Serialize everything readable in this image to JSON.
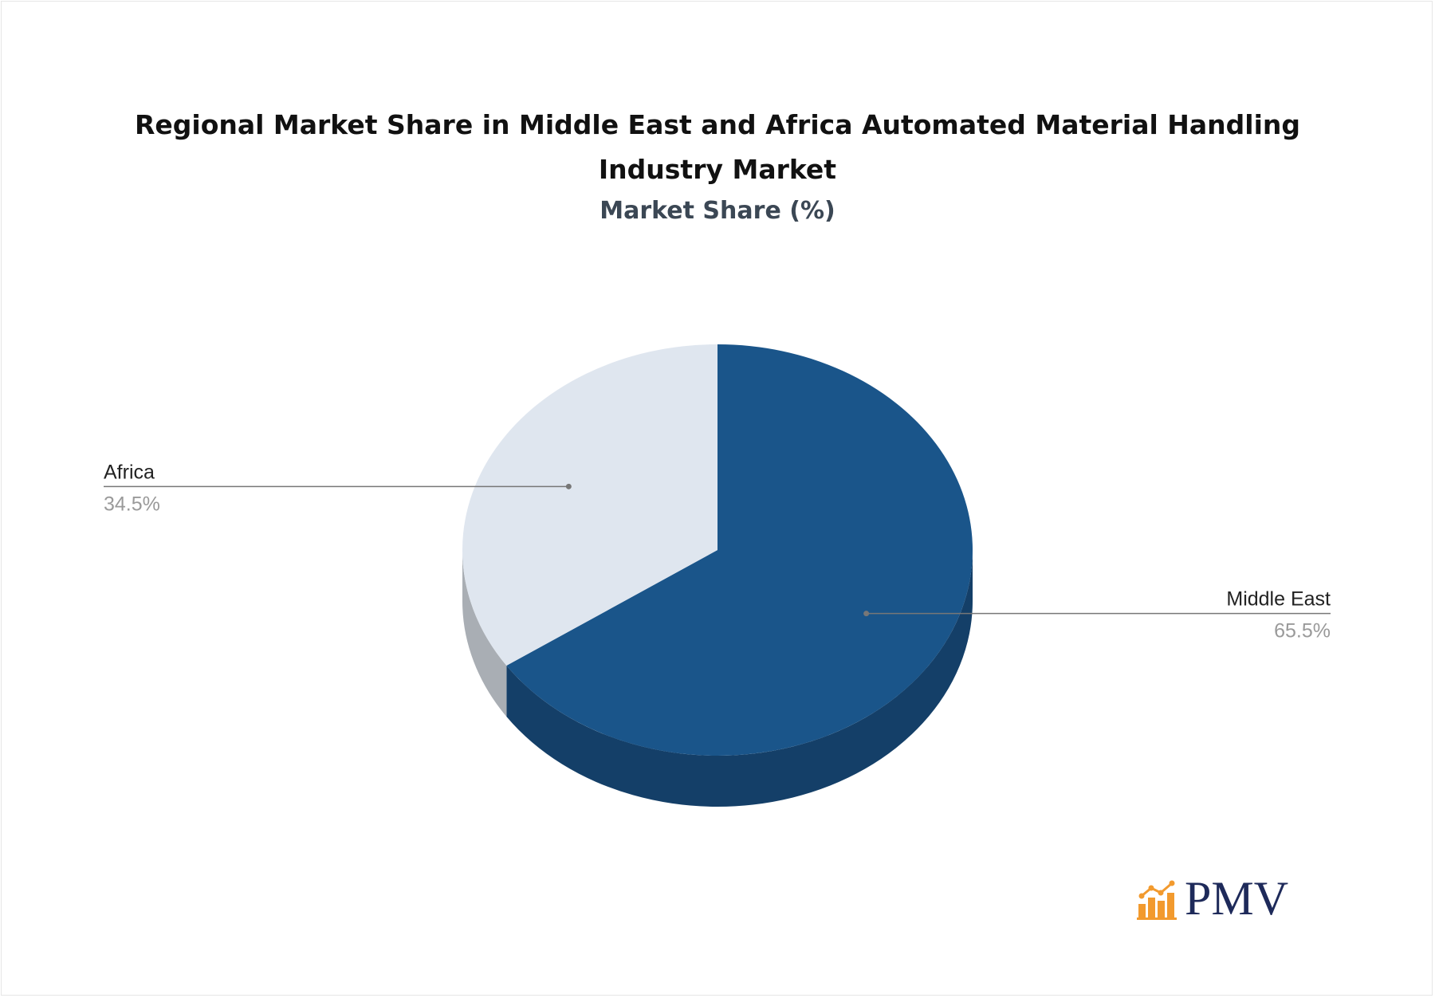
{
  "chart_data": {
    "type": "pie",
    "title_lines": [
      "Regional Market Share in Middle East and Africa Automated Material Handling",
      "Industry Market"
    ],
    "subtitle": "Market Share (%)",
    "slices": [
      {
        "label": "Middle East",
        "value": 65.5,
        "display": "65.5%",
        "color": "#1a558a",
        "side_color": "#143f68"
      },
      {
        "label": "Africa",
        "value": 34.5,
        "display": "34.5%",
        "color": "#dfe6ef",
        "side_color": "#a9aeb4"
      }
    ],
    "start_angle_deg": 0,
    "direction": "clockwise",
    "style": "3d",
    "legend": "none"
  },
  "logo": {
    "text": "PMV",
    "icon": "bar-chart-icon",
    "icon_color": "#f29a2e"
  }
}
